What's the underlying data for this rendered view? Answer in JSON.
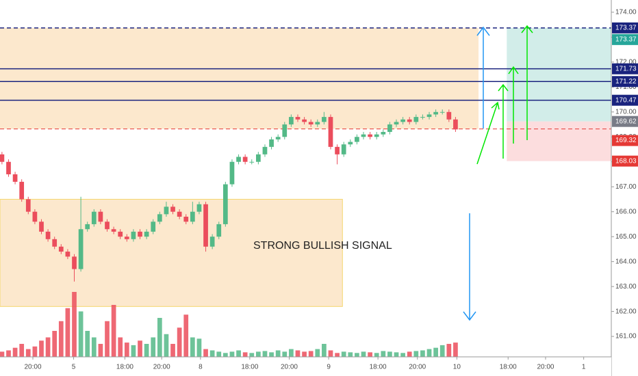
{
  "chart_data": {
    "type": "candlestick",
    "annotation": "STRONG BULLISH SIGNAL",
    "up_color": "#53b987",
    "down_color": "#eb4d5c",
    "open": [
      168.3,
      168.0,
      167.5,
      167.2,
      166.5,
      166.0,
      165.6,
      165.2,
      164.9,
      164.6,
      164.4,
      164.2,
      163.7,
      165.3,
      165.5,
      166.0,
      165.6,
      165.3,
      165.2,
      165.0,
      164.9,
      165.2,
      165.0,
      165.2,
      165.6,
      165.9,
      166.2,
      166.0,
      165.8,
      165.6,
      166.0,
      166.3,
      164.6,
      165.0,
      165.5,
      167.1,
      168.0,
      168.2,
      168.0,
      168.0,
      168.3,
      168.6,
      168.9,
      169.0,
      169.5,
      169.8,
      169.7,
      169.6,
      169.5,
      169.6,
      169.8,
      168.6,
      168.3,
      168.7,
      168.8,
      169.0,
      169.1,
      169.0,
      169.1,
      169.2,
      169.5,
      169.6,
      169.7,
      169.6,
      169.8,
      169.8,
      169.9,
      170.0,
      170.0,
      169.7
    ],
    "high": [
      168.4,
      168.1,
      167.6,
      167.3,
      166.6,
      166.1,
      165.7,
      165.3,
      165.0,
      164.7,
      164.5,
      164.3,
      166.6,
      165.6,
      166.1,
      166.1,
      165.7,
      165.4,
      165.3,
      165.1,
      165.3,
      165.3,
      165.3,
      165.7,
      166.0,
      166.4,
      166.3,
      166.1,
      165.9,
      166.4,
      166.4,
      166.4,
      165.1,
      165.6,
      167.2,
      168.1,
      168.3,
      168.3,
      168.1,
      168.4,
      168.7,
      169.0,
      169.1,
      169.6,
      169.9,
      169.9,
      169.8,
      169.7,
      169.7,
      170.0,
      169.9,
      168.7,
      168.8,
      168.9,
      169.1,
      169.2,
      169.2,
      169.2,
      169.3,
      169.6,
      169.7,
      169.8,
      169.8,
      169.9,
      169.9,
      170.0,
      170.1,
      170.1,
      170.1,
      169.8
    ],
    "low": [
      167.9,
      167.4,
      167.1,
      166.4,
      165.9,
      165.5,
      165.1,
      164.8,
      164.5,
      164.3,
      164.1,
      163.2,
      163.6,
      165.2,
      165.4,
      165.5,
      165.2,
      165.1,
      164.9,
      164.8,
      164.8,
      164.9,
      164.9,
      165.1,
      165.5,
      165.8,
      165.9,
      165.7,
      165.5,
      165.5,
      165.9,
      164.4,
      164.5,
      164.9,
      165.4,
      167.0,
      167.9,
      167.9,
      167.9,
      167.9,
      168.2,
      168.5,
      168.8,
      168.9,
      169.4,
      169.6,
      169.5,
      169.4,
      169.4,
      169.5,
      168.5,
      167.9,
      168.2,
      168.6,
      168.7,
      168.9,
      168.9,
      168.9,
      169.0,
      169.1,
      169.4,
      169.5,
      169.5,
      169.5,
      169.7,
      169.7,
      169.8,
      169.9,
      169.6,
      169.2
    ],
    "close": [
      168.0,
      167.5,
      167.2,
      166.5,
      166.0,
      165.6,
      165.2,
      164.9,
      164.6,
      164.4,
      164.2,
      163.7,
      165.3,
      165.5,
      166.0,
      165.6,
      165.3,
      165.2,
      165.0,
      164.9,
      165.2,
      165.0,
      165.2,
      165.6,
      165.9,
      166.2,
      166.0,
      165.8,
      165.6,
      166.0,
      166.3,
      164.6,
      165.0,
      165.5,
      167.1,
      168.0,
      168.2,
      168.0,
      168.0,
      168.3,
      168.6,
      168.9,
      169.0,
      169.5,
      169.8,
      169.7,
      169.6,
      169.5,
      169.6,
      169.8,
      168.6,
      168.3,
      168.7,
      168.8,
      169.0,
      169.1,
      169.0,
      169.1,
      169.2,
      169.5,
      169.6,
      169.7,
      169.6,
      169.8,
      169.8,
      169.9,
      170.0,
      170.0,
      169.7,
      169.3
    ],
    "volume": [
      8,
      10,
      14,
      20,
      12,
      16,
      25,
      30,
      40,
      55,
      75,
      100,
      70,
      40,
      30,
      20,
      55,
      80,
      30,
      22,
      18,
      25,
      20,
      30,
      60,
      35,
      20,
      45,
      65,
      30,
      28,
      12,
      10,
      8,
      6,
      8,
      10,
      7,
      6,
      8,
      9,
      7,
      10,
      8,
      12,
      10,
      8,
      9,
      12,
      20,
      10,
      6,
      8,
      7,
      6,
      8,
      7,
      6,
      9,
      8,
      7,
      6,
      8,
      9,
      10,
      12,
      14,
      18,
      20,
      22
    ],
    "xlim": [
      -0.3,
      92.7
    ],
    "xticks": [
      {
        "value": 4.7,
        "label": "20:00"
      },
      {
        "value": 10.9,
        "label": "5"
      },
      {
        "value": 18.7,
        "label": "18:00"
      },
      {
        "value": 24.3,
        "label": "20:00"
      },
      {
        "value": 30.2,
        "label": "8"
      },
      {
        "value": 37.7,
        "label": "18:00"
      },
      {
        "value": 43.7,
        "label": "20:00"
      },
      {
        "value": 49.7,
        "label": "9"
      },
      {
        "value": 57.2,
        "label": "18:00"
      },
      {
        "value": 63.2,
        "label": "20:00"
      },
      {
        "value": 69.2,
        "label": "10"
      },
      {
        "value": 77,
        "label": "18:00"
      },
      {
        "value": 82.7,
        "label": "20:00"
      },
      {
        "value": 88.5,
        "label": "1"
      }
    ],
    "ylim": [
      160.18,
      174.49
    ],
    "yticks": [
      {
        "value": 161,
        "label": "161.00"
      },
      {
        "value": 162,
        "label": "162.00"
      },
      {
        "value": 163,
        "label": "163.00"
      },
      {
        "value": 164,
        "label": "164.00"
      },
      {
        "value": 165,
        "label": "165.00"
      },
      {
        "value": 166,
        "label": "166.00"
      },
      {
        "value": 167,
        "label": "167.00"
      },
      {
        "value": 168,
        "label": "168.00"
      },
      {
        "value": 169,
        "label": "169.00"
      },
      {
        "value": 170,
        "label": "170.00"
      },
      {
        "value": 171,
        "label": "171.00"
      },
      {
        "value": 172,
        "label": "172.00"
      },
      {
        "value": 173,
        "label": "173.00"
      },
      {
        "value": 174,
        "label": "174.00"
      }
    ],
    "levels": [
      {
        "value": 173.37,
        "color": "#1a237e",
        "dash": true
      },
      {
        "value": 171.73,
        "color": "#1a237e",
        "dash": false
      },
      {
        "value": 171.22,
        "color": "#1a237e",
        "dash": false
      },
      {
        "value": 170.47,
        "color": "#1a237e",
        "dash": false
      },
      {
        "value": 169.32,
        "color": "#e53935",
        "dash": true
      }
    ],
    "zones": [
      {
        "x": [
          -0.3,
          72.5
        ],
        "y": [
          169.32,
          173.37
        ],
        "color": "#fbe2c0"
      },
      {
        "x": [
          -0.3,
          51.8
        ],
        "y": [
          162.2,
          166.5
        ],
        "color": "#fbe2c0"
      },
      {
        "x": [
          76.8,
          92.7
        ],
        "y": [
          169.62,
          173.37
        ],
        "color": "#c7e9e4"
      },
      {
        "x": [
          76.8,
          92.7
        ],
        "y": [
          168.03,
          169.62
        ],
        "color": "#fbd4d6"
      }
    ],
    "price_tags": [
      {
        "value": 173.37,
        "label": "173.37",
        "color": "#1a237e"
      },
      {
        "value": 173.37,
        "label": "173.37",
        "color": "#26a69a"
      },
      {
        "value": 171.73,
        "label": "171.73",
        "color": "#1a237e"
      },
      {
        "value": 171.22,
        "label": "171.22",
        "color": "#1a237e"
      },
      {
        "value": 170.47,
        "label": "170.47",
        "color": "#1a237e"
      },
      {
        "value": 169.62,
        "label": "169.62",
        "color": "#787b86"
      },
      {
        "value": 169.32,
        "label": "169.32",
        "color": "#e53935"
      },
      {
        "value": 168.03,
        "label": "168.03",
        "color": "#e53935"
      }
    ]
  }
}
